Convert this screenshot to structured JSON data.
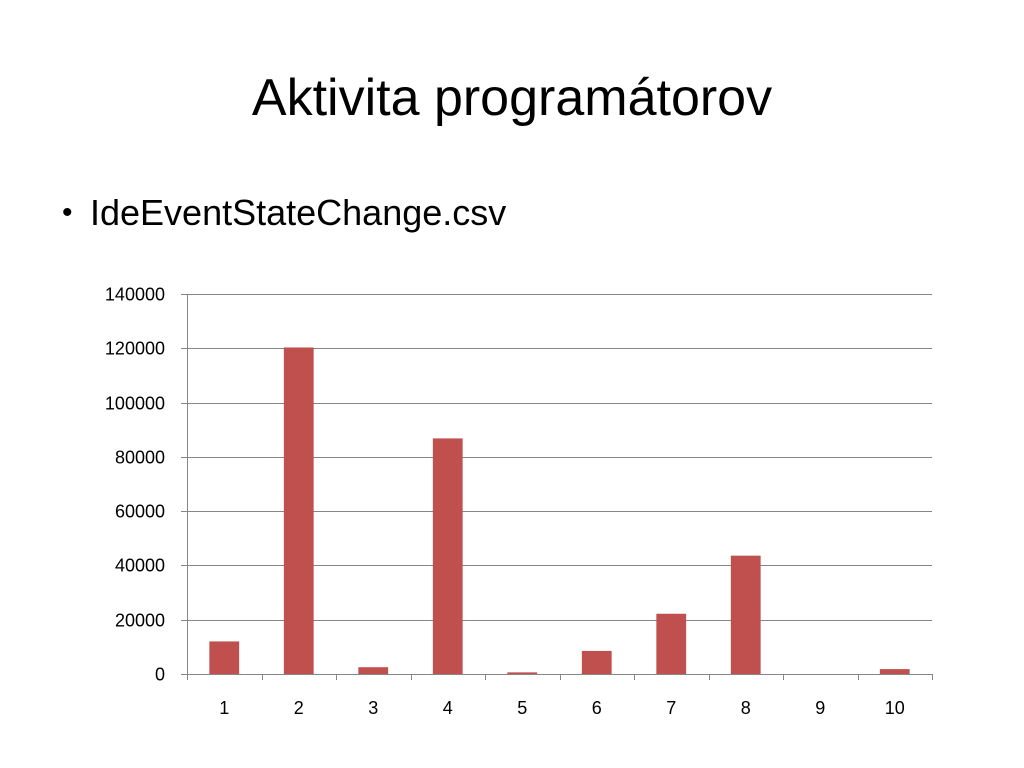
{
  "slide": {
    "title": "Aktivita programátorov",
    "bullet": "IdeEventStateChange.csv"
  },
  "colors": {
    "bar": "#c0504d",
    "grid": "#868686",
    "axis": "#868686"
  },
  "chart_data": {
    "type": "bar",
    "categories": [
      "1",
      "2",
      "3",
      "4",
      "5",
      "6",
      "7",
      "8",
      "9",
      "10"
    ],
    "values": [
      12000,
      120300,
      2500,
      86800,
      600,
      8500,
      22200,
      43600,
      0,
      1800
    ],
    "title": "",
    "xlabel": "",
    "ylabel": "",
    "ylim": [
      0,
      140000
    ],
    "yticks": [
      "0",
      "20000",
      "40000",
      "60000",
      "80000",
      "100000",
      "120000",
      "140000"
    ],
    "grid": true,
    "legend": "none"
  }
}
